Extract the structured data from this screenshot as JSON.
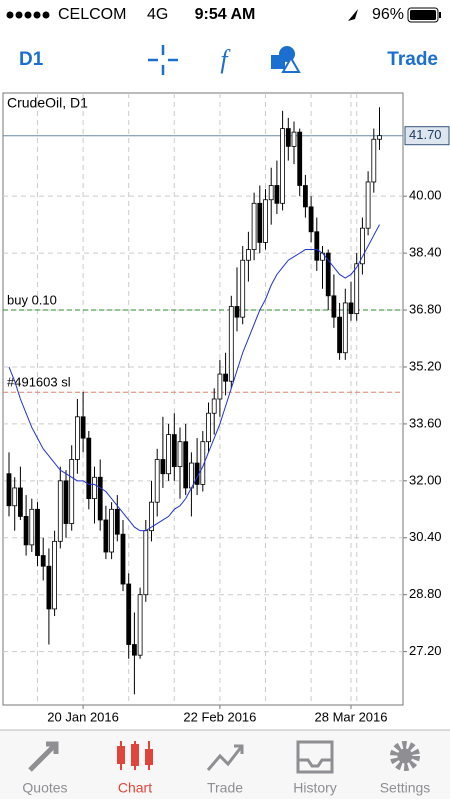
{
  "status_bar": {
    "carrier": "CELCOM",
    "network": "4G",
    "time": "9:54 AM",
    "battery": "96%"
  },
  "toolbar": {
    "period": "D1",
    "trade": "Trade"
  },
  "chart_data": {
    "type": "candlestick",
    "title": "CrudeOil, D1",
    "categories": [
      null,
      null,
      null,
      null,
      null,
      null,
      null,
      null,
      null,
      null,
      null,
      null,
      null,
      "20 Jan 2016",
      null,
      null,
      null,
      null,
      null,
      null,
      null,
      null,
      null,
      null,
      null,
      null,
      null,
      null,
      null,
      null,
      null,
      null,
      null,
      null,
      null,
      null,
      null,
      "22 Feb 2016",
      null,
      null,
      null,
      null,
      null,
      null,
      null,
      null,
      null,
      null,
      null,
      null,
      null,
      null,
      null,
      null,
      null,
      null,
      null,
      null,
      null,
      null,
      "28 Mar 2016",
      null,
      null,
      null,
      null,
      null
    ],
    "open": [
      32.2,
      31.3,
      31.8,
      31.0,
      30.2,
      31.2,
      29.9,
      29.6,
      28.4,
      30.3,
      32.0,
      30.8,
      32.6,
      33.8,
      33.2,
      31.5,
      32.1,
      30.9,
      30.0,
      31.2,
      30.5,
      29.1,
      27.4,
      27.1,
      28.8,
      30.6,
      31.4,
      32.6,
      32.2,
      33.3,
      32.4,
      33.1,
      31.8,
      32.5,
      31.9,
      33.1,
      33.9,
      34.3,
      35.0,
      34.8,
      36.9,
      36.6,
      38.2,
      38.5,
      39.8,
      38.7,
      39.9,
      40.3,
      39.8,
      41.9,
      41.4,
      41.8,
      40.3,
      39.7,
      39.0,
      38.2,
      38.4,
      37.2,
      36.6,
      35.6,
      37.0,
      36.7,
      38.1,
      39.1,
      40.4,
      41.6
    ],
    "high": [
      32.8,
      32.1,
      32.4,
      31.6,
      31.5,
      31.4,
      30.4,
      30.1,
      30.6,
      32.4,
      32.3,
      33.0,
      34.3,
      34.5,
      33.4,
      32.4,
      32.6,
      31.3,
      31.4,
      31.6,
      30.9,
      29.4,
      28.3,
      29.0,
      30.9,
      32.0,
      32.9,
      33.8,
      33.6,
      33.9,
      33.5,
      33.6,
      32.8,
      33.2,
      33.4,
      34.2,
      34.6,
      35.4,
      35.6,
      37.2,
      38.0,
      38.6,
      39.0,
      40.1,
      40.3,
      40.2,
      40.8,
      41.0,
      42.4,
      42.2,
      42.1,
      41.9,
      40.6,
      40.0,
      39.4,
      38.6,
      38.5,
      37.8,
      37.0,
      37.4,
      37.6,
      38.4,
      39.4,
      40.7,
      41.9,
      42.5
    ],
    "low": [
      31.0,
      30.6,
      30.9,
      29.9,
      30.0,
      29.6,
      29.2,
      27.4,
      28.2,
      30.1,
      30.4,
      30.6,
      32.2,
      32.8,
      31.2,
      30.8,
      30.6,
      29.8,
      29.8,
      30.3,
      28.9,
      27.0,
      26.0,
      27.0,
      28.6,
      30.3,
      31.0,
      31.8,
      32.0,
      32.0,
      31.5,
      31.6,
      31.0,
      31.6,
      31.7,
      32.8,
      33.3,
      33.8,
      34.4,
      34.6,
      36.2,
      36.4,
      37.6,
      38.2,
      38.4,
      38.5,
      39.2,
      39.5,
      39.6,
      41.0,
      40.9,
      40.0,
      39.4,
      38.7,
      37.9,
      37.4,
      36.8,
      36.3,
      35.4,
      35.4,
      36.5,
      36.5,
      37.8,
      38.9,
      40.1,
      41.3
    ],
    "close": [
      31.3,
      31.8,
      31.0,
      30.2,
      31.2,
      29.9,
      29.6,
      28.4,
      30.3,
      32.0,
      30.8,
      32.6,
      33.8,
      33.2,
      31.5,
      32.1,
      30.9,
      30.0,
      31.2,
      30.5,
      29.1,
      27.4,
      27.1,
      28.8,
      30.6,
      31.4,
      32.6,
      32.2,
      33.3,
      32.4,
      33.1,
      31.8,
      32.5,
      31.9,
      33.1,
      33.9,
      34.3,
      35.0,
      34.8,
      36.9,
      36.6,
      38.2,
      38.5,
      39.8,
      38.7,
      39.9,
      40.3,
      39.8,
      41.9,
      41.4,
      41.8,
      40.3,
      39.7,
      39.0,
      38.2,
      38.4,
      37.2,
      36.6,
      35.6,
      37.0,
      36.7,
      38.1,
      39.1,
      40.4,
      41.6,
      41.7
    ],
    "moving_average": {
      "color": "#2233cc",
      "values": [
        35.2,
        34.8,
        34.3,
        33.9,
        33.5,
        33.2,
        32.9,
        32.7,
        32.5,
        32.3,
        32.2,
        32.1,
        32.0,
        32.0,
        31.9,
        31.9,
        31.8,
        31.7,
        31.5,
        31.3,
        31.1,
        30.9,
        30.7,
        30.6,
        30.6,
        30.7,
        30.8,
        30.9,
        31.0,
        31.2,
        31.3,
        31.5,
        31.8,
        32.1,
        32.4,
        32.8,
        33.2,
        33.6,
        34.1,
        34.6,
        35.1,
        35.6,
        36.0,
        36.4,
        36.8,
        37.1,
        37.5,
        37.8,
        38.0,
        38.2,
        38.3,
        38.4,
        38.5,
        38.5,
        38.5,
        38.4,
        38.2,
        38.0,
        37.8,
        37.7,
        37.8,
        38.0,
        38.3,
        38.6,
        38.9,
        39.2
      ]
    },
    "ylim": [
      25.7,
      42.9
    ],
    "yticks": [
      {
        "value": 40,
        "label": "40.00"
      },
      {
        "value": 38.4,
        "label": "38.40"
      },
      {
        "value": 36.8,
        "label": "36.80"
      },
      {
        "value": 35.2,
        "label": "35.20"
      },
      {
        "value": 33.6,
        "label": "33.60"
      },
      {
        "value": 32,
        "label": "32.00"
      },
      {
        "value": 30.4,
        "label": "30.40"
      },
      {
        "value": 28.8,
        "label": "28.80"
      },
      {
        "value": 27.2,
        "label": "27.20"
      }
    ],
    "current_price": {
      "value": 41.7,
      "label": "41.70"
    },
    "levels": [
      {
        "label": "buy 0.10",
        "value": 36.8,
        "color": "#2e8b2e"
      },
      {
        "label": "#491603 sl",
        "value": 34.49,
        "color": "#e0806a"
      }
    ],
    "grid": true
  },
  "tab_bar": {
    "tabs": [
      "Quotes",
      "Chart",
      "Trade",
      "History",
      "Settings"
    ],
    "active": 1
  }
}
